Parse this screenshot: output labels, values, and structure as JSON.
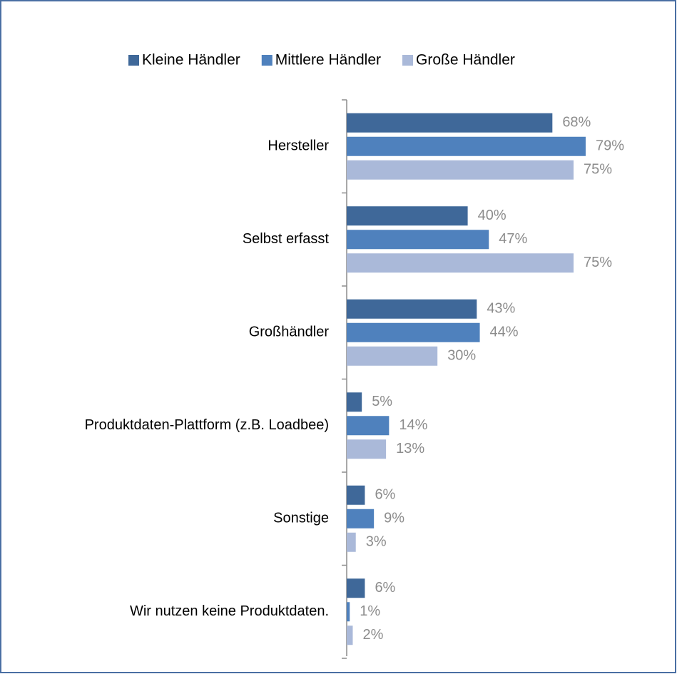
{
  "chart_data": {
    "type": "hbar",
    "categories": [
      "Hersteller",
      "Selbst erfasst",
      "Großhändler",
      "Produktdaten-Plattform (z.B. Loadbee)",
      "Sonstige",
      "Wir nutzen keine Produktdaten."
    ],
    "series": [
      {
        "name": "Kleine Händler",
        "color": "#3f6899",
        "values": [
          68,
          40,
          43,
          5,
          6,
          6
        ],
        "value_labels": [
          "68%",
          "40%",
          "43%",
          "5%",
          "6%",
          "6%"
        ]
      },
      {
        "name": "Mittlere Händler",
        "color": "#4f81bd",
        "values": [
          79,
          47,
          44,
          14,
          9,
          1
        ],
        "value_labels": [
          "79%",
          "47%",
          "44%",
          "14%",
          "9%",
          "1%"
        ]
      },
      {
        "name": "Große Händler",
        "color": "#aab9d9",
        "values": [
          75,
          75,
          30,
          13,
          3,
          2
        ],
        "value_labels": [
          "75%",
          "75%",
          "30%",
          "13%",
          "3%",
          "2%"
        ]
      }
    ],
    "legend": "top"
  }
}
